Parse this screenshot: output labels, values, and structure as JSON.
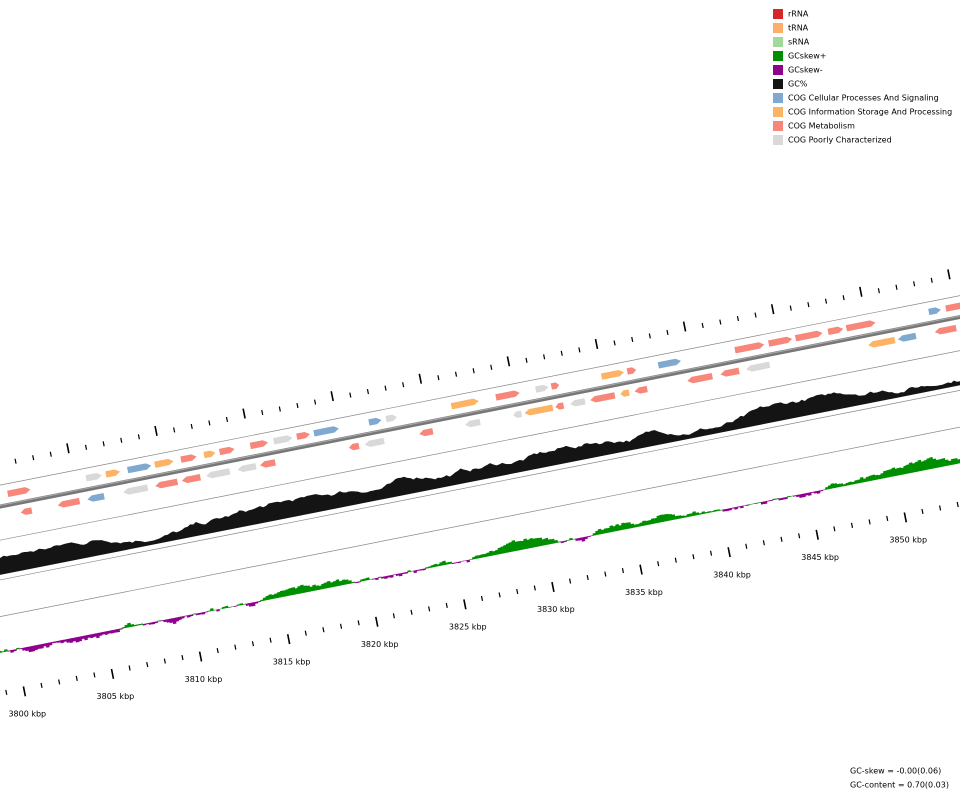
{
  "legend": [
    {
      "label": "rRNA",
      "color": "#d62728"
    },
    {
      "label": "tRNA",
      "color": "#fdae6b"
    },
    {
      "label": "sRNA",
      "color": "#a1d99b"
    },
    {
      "label": "GCskew+",
      "color": "#008f00"
    },
    {
      "label": "GCskew-",
      "color": "#8f008f"
    },
    {
      "label": "GC%",
      "color": "#141414"
    },
    {
      "label": "COG Cellular Processes And Signaling",
      "color": "#7fa9d0"
    },
    {
      "label": "COG Information Storage And Processing",
      "color": "#fdb366"
    },
    {
      "label": "COG Metabolism",
      "color": "#f7877a"
    },
    {
      "label": "COG Poorly Characterized",
      "color": "#d9d9d9"
    }
  ],
  "scale_labels": [
    "3800 kbp",
    "3805 kbp",
    "3810 kbp",
    "3815 kbp",
    "3820 kbp",
    "3825 kbp",
    "3830 kbp",
    "3835 kbp",
    "3840 kbp",
    "3845 kbp",
    "3850 kbp"
  ],
  "stats": [
    "GC-skew = -0.00(0.06)",
    "GC-content = 0.70(0.03)"
  ]
}
